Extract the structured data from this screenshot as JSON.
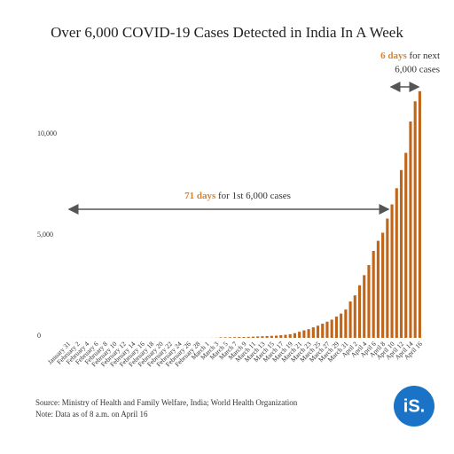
{
  "chart_data": {
    "type": "bar",
    "title": "Over 6,000 COVID-19 Cases Detected in India In A Week",
    "categories": [
      "January 31",
      null,
      "February 2",
      null,
      "February 4",
      null,
      "February 6",
      null,
      "February 8",
      null,
      "February 10",
      null,
      "February 12",
      null,
      "February 14",
      null,
      "February 16",
      null,
      "February 18",
      null,
      "February 20",
      null,
      "February 22",
      null,
      "February 24",
      null,
      "February 26",
      null,
      "February 28",
      null,
      "March 1",
      null,
      "March 3",
      null,
      "March 5",
      null,
      "March 7",
      null,
      "March 9",
      null,
      "March 11",
      null,
      "March 13",
      null,
      "March 15",
      null,
      "March 17",
      null,
      "March 19",
      null,
      "March 21",
      null,
      "March 23",
      null,
      "March 25",
      null,
      "March 27",
      null,
      "March 29",
      null,
      "March 31",
      null,
      "April 2",
      null,
      "April 4",
      null,
      "April 6",
      null,
      "April 8",
      null,
      "April 10",
      null,
      "April 12",
      null,
      "April 14",
      null,
      "April 16"
    ],
    "values": [
      1,
      1,
      2,
      3,
      3,
      3,
      3,
      3,
      3,
      3,
      3,
      3,
      3,
      3,
      3,
      3,
      3,
      3,
      3,
      3,
      3,
      3,
      3,
      3,
      3,
      3,
      3,
      3,
      3,
      3,
      3,
      5,
      6,
      28,
      29,
      31,
      34,
      40,
      45,
      50,
      60,
      70,
      80,
      90,
      100,
      110,
      130,
      150,
      180,
      230,
      300,
      370,
      430,
      520,
      600,
      700,
      800,
      900,
      1050,
      1200,
      1400,
      1800,
      2100,
      2600,
      3100,
      3600,
      4300,
      4800,
      5200,
      5900,
      6600,
      7400,
      8300,
      9150,
      10700,
      11700,
      12200
    ],
    "color": "#c0661a",
    "ylim": [
      0,
      12500
    ],
    "yticks": [
      0,
      {
        "value": 5000,
        "label": "5,000"
      },
      {
        "value": 10000,
        "label": "10,000"
      }
    ],
    "grid": false,
    "annotations": [
      {
        "highlight": "71 days",
        "text": "for 1st 6,000 cases"
      },
      {
        "highlight": "6 days",
        "text": "for next",
        "line2": "6,000 cases"
      }
    ],
    "source": "Source: Ministry of Health and Family Welfare, India; World Health Organization",
    "note": "Note: Data as of 8 a.m. on April 16",
    "logo": "iS."
  }
}
